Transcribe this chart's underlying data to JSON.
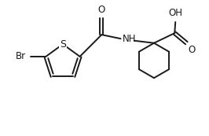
{
  "background_color": "#ffffff",
  "line_color": "#1a1a1a",
  "line_width": 1.4,
  "font_size": 8.5,
  "figure_width": 2.66,
  "figure_height": 1.73,
  "dpi": 100,
  "xlim": [
    0.0,
    5.2
  ],
  "ylim": [
    0.0,
    3.4
  ]
}
